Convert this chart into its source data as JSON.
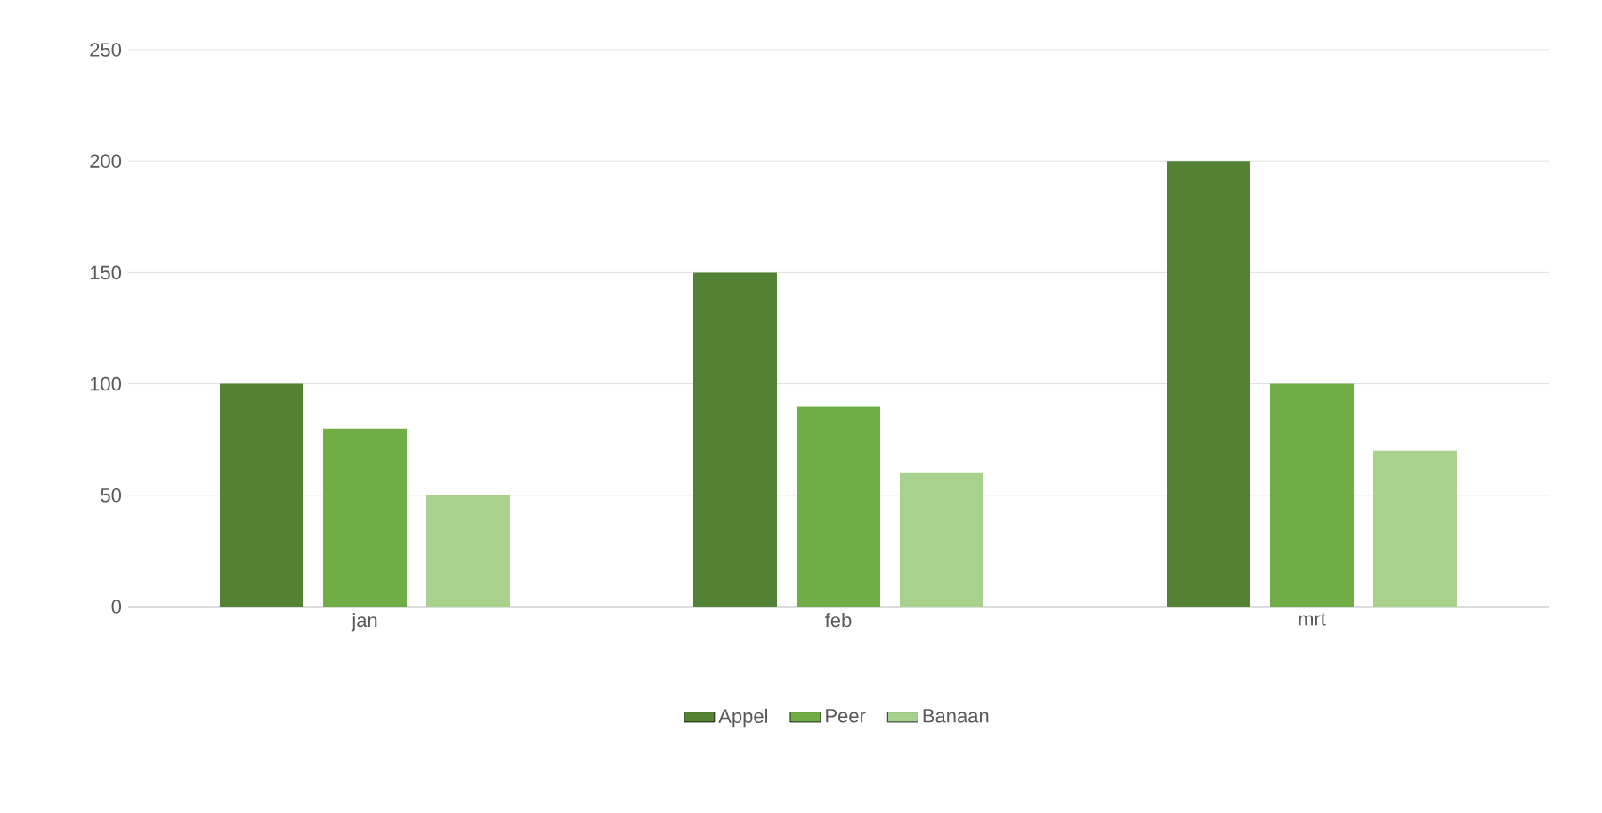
{
  "chart_data": {
    "type": "bar",
    "categories": [
      "jan",
      "feb",
      "mrt"
    ],
    "series": [
      {
        "name": "Appel",
        "color": "#548235",
        "values": [
          100,
          150,
          200
        ]
      },
      {
        "name": "Peer",
        "color": "#70ad47",
        "values": [
          80,
          90,
          100
        ]
      },
      {
        "name": "Banaan",
        "color": "#a9d18e",
        "values": [
          50,
          60,
          70
        ]
      }
    ],
    "ylim": [
      0,
      250
    ],
    "yticks": [
      0,
      50,
      100,
      150,
      200,
      250
    ],
    "grid": "y",
    "legend": "bottom"
  }
}
